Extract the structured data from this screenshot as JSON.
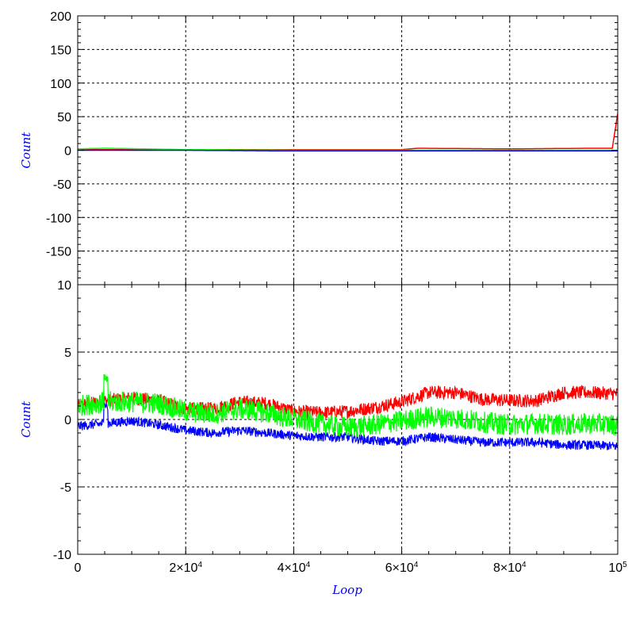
{
  "colors": {
    "red": "#ff0000",
    "green": "#00ff00",
    "blue": "#0000ff",
    "axis_title": "#0000ff",
    "grid": "#000000"
  },
  "chart_data": [
    {
      "type": "line",
      "panel": "top",
      "ylabel": "Count",
      "ylim": [
        -200,
        200
      ],
      "ytick_values": [
        -150,
        -100,
        -50,
        0,
        50,
        100,
        150,
        200
      ],
      "ytick_labels": [
        "-150",
        "-100",
        "-50",
        "0",
        "50",
        "100",
        "150",
        "200"
      ],
      "grid": true,
      "xlim": [
        0,
        100000
      ],
      "series": [
        {
          "color": "#ff0000",
          "x": [
            0,
            20000,
            40000,
            60000,
            63000,
            80000,
            95000,
            99000,
            100000
          ],
          "y": [
            1,
            1,
            1,
            1,
            3,
            2,
            3,
            3,
            55
          ]
        },
        {
          "color": "#00ff00",
          "x": [
            0,
            5000,
            20000,
            40000,
            60000,
            80000,
            100000
          ],
          "y": [
            2,
            3,
            1,
            0,
            0,
            0,
            0
          ]
        },
        {
          "color": "#0000ff",
          "x": [
            0,
            20000,
            40000,
            60000,
            80000,
            100000
          ],
          "y": [
            0,
            0,
            -1,
            -1,
            -1,
            -1
          ]
        }
      ]
    },
    {
      "type": "line",
      "panel": "bottom",
      "xlabel": "Loop",
      "ylabel": "Count",
      "ylim": [
        -10,
        10
      ],
      "ytick_values": [
        -10,
        -5,
        0,
        5,
        10
      ],
      "ytick_labels": [
        "-10",
        "-5",
        "0",
        "5",
        "10"
      ],
      "xlim": [
        0,
        100000
      ],
      "xtick_values": [
        0,
        20000,
        40000,
        60000,
        80000,
        100000
      ],
      "xtick_labels": [
        {
          "base": "0",
          "exp": ""
        },
        {
          "base": "2×10",
          "exp": "4"
        },
        {
          "base": "4×10",
          "exp": "4"
        },
        {
          "base": "6×10",
          "exp": "4"
        },
        {
          "base": "8×10",
          "exp": "4"
        },
        {
          "base": "10",
          "exp": "5"
        }
      ],
      "grid": true,
      "series": [
        {
          "color": "#ff0000",
          "x": [
            0,
            5000,
            10000,
            15000,
            20000,
            25000,
            30000,
            35000,
            40000,
            45000,
            50000,
            55000,
            60000,
            65000,
            70000,
            75000,
            80000,
            85000,
            90000,
            95000,
            100000
          ],
          "y": [
            1,
            1.4,
            1.6,
            1.4,
            0.8,
            0.8,
            1.3,
            1.2,
            0.6,
            0.5,
            0.6,
            0.9,
            1.3,
            2.0,
            2.0,
            1.5,
            1.4,
            1.4,
            2.0,
            2.0,
            1.9
          ],
          "band": 0.5
        },
        {
          "color": "#0000ff",
          "x": [
            0,
            5000,
            10000,
            15000,
            20000,
            25000,
            30000,
            35000,
            40000,
            45000,
            50000,
            55000,
            60000,
            65000,
            70000,
            75000,
            80000,
            85000,
            90000,
            95000,
            100000
          ],
          "y": [
            -0.5,
            -0.3,
            -0.1,
            -0.4,
            -0.8,
            -1.0,
            -0.8,
            -1.0,
            -1.2,
            -1.3,
            -1.3,
            -1.6,
            -1.6,
            -1.3,
            -1.5,
            -1.7,
            -1.7,
            -1.7,
            -1.9,
            -1.9,
            -2.0
          ],
          "band": 0.35,
          "spike": {
            "x": 5200,
            "y": 1.3
          }
        },
        {
          "color": "#00ff00",
          "x": [
            0,
            5000,
            10000,
            15000,
            20000,
            25000,
            30000,
            35000,
            40000,
            45000,
            50000,
            55000,
            60000,
            65000,
            70000,
            75000,
            80000,
            85000,
            90000,
            95000,
            100000
          ],
          "y": [
            1.0,
            1.3,
            1.3,
            1.2,
            0.6,
            0.4,
            0.8,
            0.5,
            0.0,
            -0.3,
            -0.6,
            -0.4,
            -0.1,
            0.2,
            0.1,
            -0.2,
            -0.4,
            -0.3,
            -0.4,
            -0.3,
            -0.4
          ],
          "band": 0.8,
          "spike": {
            "x": 5200,
            "y": 3.4
          }
        }
      ]
    }
  ]
}
